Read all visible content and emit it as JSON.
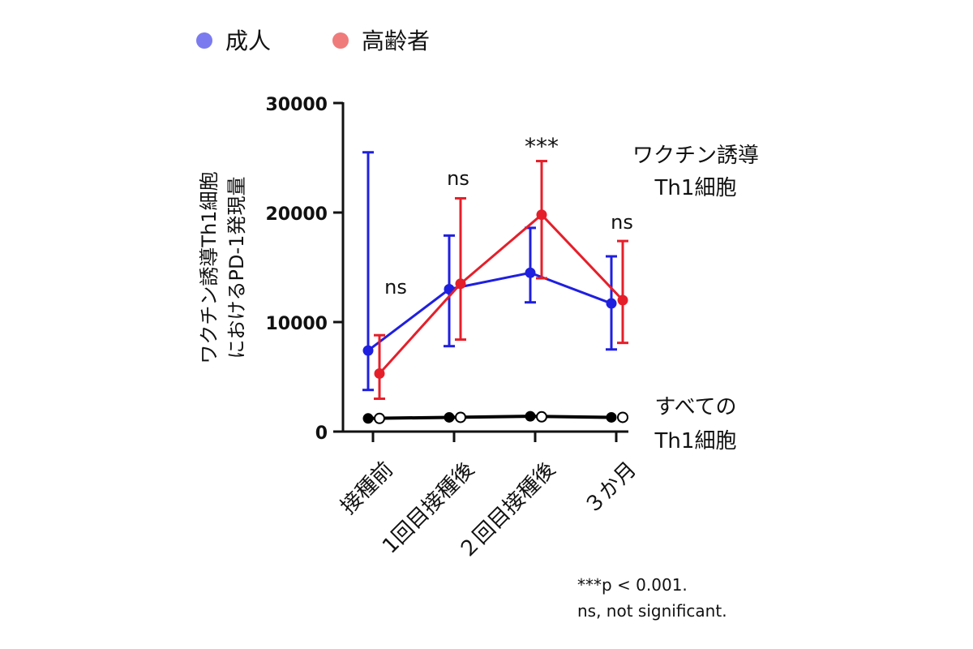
{
  "chart_data": {
    "type": "line",
    "legend": {
      "position": "top-left",
      "entries": [
        {
          "name": "成人",
          "color": "#7b7bef"
        },
        {
          "name": "高齢者",
          "color": "#ef7b7b"
        }
      ]
    },
    "ylabel_lines": [
      "ワクチン誘導Th1細胞",
      "におけるPD-1発現量"
    ],
    "categories": [
      "接種前",
      "1回目接種後",
      "２回目接種後",
      "３か月"
    ],
    "ylim": [
      0,
      30000
    ],
    "yticks": [
      "0",
      "10000",
      "20000",
      "30000"
    ],
    "series": [
      {
        "name": "成人",
        "group": "ワクチン誘導Th1細胞",
        "color": "#1f1fe0",
        "values": [
          7400,
          13000,
          14500,
          11700
        ],
        "err_high": [
          25500,
          17900,
          18600,
          16000
        ],
        "err_low": [
          3800,
          7800,
          11800,
          7500
        ]
      },
      {
        "name": "高齢者",
        "group": "ワクチン誘導Th1細胞",
        "color": "#e51f2a",
        "values": [
          5300,
          13500,
          19800,
          12000
        ],
        "err_high": [
          8800,
          21300,
          24700,
          17400
        ],
        "err_low": [
          3000,
          8400,
          14000,
          8100
        ]
      },
      {
        "name": "成人",
        "group": "すべてのTh1細胞",
        "color": "#000000",
        "marker": "filled",
        "values": [
          1200,
          1300,
          1400,
          1300
        ]
      },
      {
        "name": "高齢者",
        "group": "すべてのTh1細胞",
        "color": "#000000",
        "marker": "open",
        "values": [
          1200,
          1300,
          1350,
          1300
        ]
      }
    ],
    "significance": [
      "ns",
      "ns",
      "***",
      "ns"
    ],
    "group_labels": {
      "vaccine": [
        "ワクチン誘導",
        "Th1細胞"
      ],
      "all": [
        "すべての",
        "Th1細胞"
      ]
    },
    "footnotes": [
      "***p < 0.001.",
      "ns, not significant."
    ]
  }
}
